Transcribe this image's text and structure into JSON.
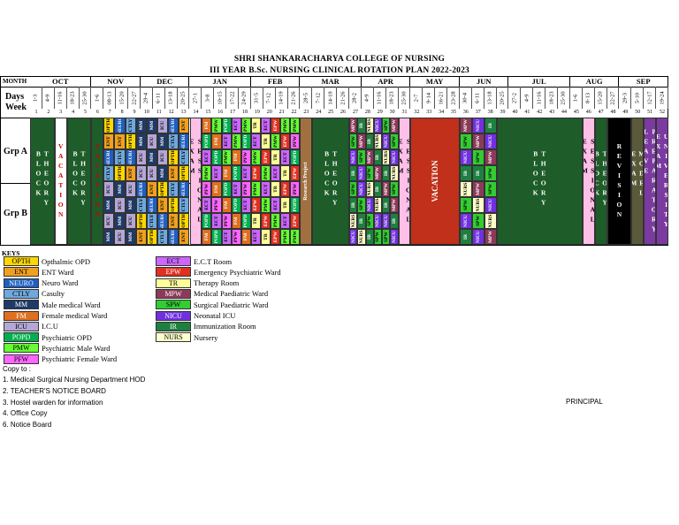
{
  "title1": "SHRI SHANKARACHARYA COLLEGE OF NURSING",
  "title2": "III YEAR B.Sc. NURSING CLINICAL ROTATION PLAN 2022-2023",
  "month_label": "MONTH",
  "days_label": "Days",
  "week_label": "Week",
  "grp_a": "Grp A",
  "grp_b": "Grp B",
  "months": [
    "OCT",
    "NOV",
    "DEC",
    "JAN",
    "FEB",
    "MAR",
    "APR",
    "MAY",
    "JUN",
    "JUL",
    "AUG",
    "SEP"
  ],
  "days": [
    "1-3",
    "4-9",
    "11-16",
    "18-23",
    "25-30",
    "1-6",
    "08-13",
    "15-20",
    "22-27",
    "29-4",
    "6-11",
    "13-18",
    "20-25",
    "27-1",
    "3-8",
    "10-15",
    "17-22",
    "24-29",
    "31-5",
    "7-12",
    "14-19",
    "21-26",
    "28-5",
    "7-12",
    "14-19",
    "21-26",
    "28-2",
    "4-9",
    "11-16",
    "18-23",
    "25-30",
    "2-7",
    "9-14",
    "16-21",
    "23-28",
    "30-4",
    "6-11",
    "13-18",
    "20-25",
    "27-2",
    "4-9",
    "11-16",
    "18-23",
    "25-30",
    "1-6",
    "8-13",
    "15-20",
    "22-27",
    "29-3",
    "5-10",
    "12-17",
    "19-24"
  ],
  "week_numbers": [
    "1",
    "2",
    "3",
    "4",
    "5",
    "6",
    "7",
    "8",
    "9",
    "10",
    "11",
    "12",
    "13",
    "14",
    "15",
    "16",
    "17",
    "18",
    "19",
    "20",
    "21",
    "22",
    "23",
    "24",
    "25",
    "26",
    "27",
    "28",
    "29",
    "30",
    "31",
    "32",
    "33",
    "34",
    "35",
    "36",
    "37",
    "38",
    "39",
    "40",
    "41",
    "42",
    "43",
    "44",
    "45",
    "46",
    "47",
    "48",
    "49",
    "50",
    "51",
    "52"
  ],
  "blocks": {
    "theory1": "THEORY BLOCK",
    "vacation1": "VACATION",
    "sessional1": "SESSIONAL EXAM",
    "research": "Research Project",
    "theory2": "THEORY BLOCK",
    "sessional2": "SESSIONAL EXAM",
    "vacation2": "VACATION",
    "theory3": "THEORY BLOCK",
    "sessional3": "SESSIONAL EXAM",
    "theory4": "THEORY BLOCK",
    "revision": "REVISION",
    "model": "MODEL EXAM",
    "prep": "PREPARATORY LEAVE",
    "univ": "UNIVERSITY EXAM"
  },
  "rot_a": [
    [
      "OPTH",
      "ENT",
      "NEURO",
      "CTLY"
    ],
    [
      "NEURO",
      "ENT",
      "CTLY",
      "OPTH"
    ],
    [
      "CTLY",
      "OPTH",
      "NEURO",
      "ENT"
    ],
    [
      "MM",
      "MM",
      "ICU",
      "ICU"
    ],
    [
      "MM",
      "ICU",
      "MM",
      "ICU"
    ],
    [
      "ICU",
      "MM",
      "ICU",
      "MM"
    ],
    [
      "NEURO",
      "CTLY",
      "OPTH",
      "ENT"
    ],
    [
      "ENT",
      "NEURO",
      "CTLY",
      "OPTH"
    ],
    [
      "FM",
      "POPD",
      "ECT",
      "PMW"
    ],
    [
      "PMW",
      "FM",
      "POPD",
      "ECT"
    ],
    [
      "POPD",
      "ECT",
      "PMW",
      "FM"
    ],
    [
      "ECT",
      "PMW",
      "FM",
      "POPD"
    ],
    [
      "PMW",
      "POPD",
      "PFW",
      "ECT"
    ],
    [
      "TR",
      "ECT",
      "PMW",
      "EPW"
    ],
    [
      "ECT",
      "TR",
      "EPW",
      "PMW"
    ],
    [
      "EPW",
      "PMW",
      "TR",
      "ECT"
    ],
    [
      "PMW",
      "EPW",
      "ECT",
      "TR"
    ],
    [
      "PMW",
      "PFW",
      "POPD",
      "EPW"
    ],
    [
      "MPW",
      "SPW",
      "NICU",
      "IR"
    ],
    [
      "IR",
      "MPW",
      "SPW",
      "NICU"
    ],
    [
      "NURS",
      "IR",
      "MPW",
      "SPW"
    ],
    [
      "NICU",
      "NURS",
      "IR",
      "MPW"
    ],
    [
      "SPW",
      "NICU",
      "NURS",
      "IR"
    ],
    [
      "MPW",
      "SPW",
      "NICU",
      "NURS"
    ],
    [
      "MPW",
      "SPW",
      "NICU",
      "IR"
    ],
    [
      "NICU",
      "MPW",
      "SPW",
      "IR"
    ],
    [
      "IR",
      "NICU",
      "MPW",
      "SPW"
    ]
  ],
  "rot_b": [
    [
      "ICU",
      "MM",
      "ICU",
      "MM"
    ],
    [
      "MM",
      "ICU",
      "MM",
      "ICU"
    ],
    [
      "ICU",
      "MM",
      "ICU",
      "MM"
    ],
    [
      "NEURO",
      "CTLY",
      "OPTH",
      "ENT"
    ],
    [
      "ENT",
      "NEURO",
      "CTLY",
      "OPTH"
    ],
    [
      "OPTH",
      "ENT",
      "NEURO",
      "CTLY"
    ],
    [
      "CTLY",
      "OPTH",
      "ENT",
      "NEURO"
    ],
    [
      "NEURO",
      "CTLY",
      "OPTH",
      "ENT"
    ],
    [
      "PFW",
      "ECT",
      "POPD",
      "FM"
    ],
    [
      "FM",
      "PFW",
      "ECT",
      "POPD"
    ],
    [
      "POPD",
      "FM",
      "PFW",
      "ECT"
    ],
    [
      "ECT",
      "POPD",
      "FM",
      "PFW"
    ],
    [
      "PFW",
      "ECT",
      "POPD",
      "FM"
    ],
    [
      "PMW",
      "EPW",
      "TR",
      "ECT"
    ],
    [
      "ECT",
      "PMW",
      "EPW",
      "TR"
    ],
    [
      "TR",
      "ECT",
      "PMW",
      "EPW"
    ],
    [
      "EPW",
      "TR",
      "ECT",
      "PMW"
    ],
    [
      "PFW",
      "POPD",
      "EPW",
      "PMW"
    ],
    [
      "SPW",
      "IR",
      "NURS",
      "NICU"
    ],
    [
      "NICU",
      "SPW",
      "IR",
      "NURS"
    ],
    [
      "NURS",
      "NICU",
      "SPW",
      "IR"
    ],
    [
      "IR",
      "NURS",
      "NICU",
      "SPW"
    ],
    [
      "MPW",
      "IR",
      "NICU",
      "SPW"
    ],
    [
      "SPW",
      "MPW",
      "IR",
      "NICU"
    ],
    [
      "NURS",
      "SPW",
      "NICU",
      "IR"
    ],
    [
      "MPW",
      "NURS",
      "SPW",
      "NICU"
    ],
    [
      "SPW",
      "NICU",
      "NURS",
      "MPW"
    ]
  ],
  "keys_title": "KEYS",
  "legend": [
    {
      "code": "OPTH",
      "label": "Opthalmic OPD",
      "color": "#ffd700"
    },
    {
      "code": "ENT",
      "label": "ENT Ward",
      "color": "#f0a020"
    },
    {
      "code": "NEURO",
      "label": "Neuro Ward",
      "color": "#1f5fbf"
    },
    {
      "code": "CTLY",
      "label": "Casulty",
      "color": "#6fa8dc"
    },
    {
      "code": "MM",
      "label": "Male medical Ward",
      "color": "#1f3a68"
    },
    {
      "code": "FM",
      "label": "Female medical Ward",
      "color": "#e07020"
    },
    {
      "code": "ICU",
      "label": "I.C.U",
      "color": "#b4a7d6"
    },
    {
      "code": "POPD",
      "label": "Psychiatric OPD",
      "color": "#00b050"
    },
    {
      "code": "PMW",
      "label": "Psychiatric Male Ward",
      "color": "#66ff33"
    },
    {
      "code": "PFW",
      "label": "Psychiatric Female Ward",
      "color": "#ff66ff"
    },
    {
      "code": "ECT",
      "label": "E.C.T Room",
      "color": "#cc66ff"
    },
    {
      "code": "EPW",
      "label": "Emergency Psychiatric Ward",
      "color": "#e03020"
    },
    {
      "code": "TR",
      "label": "Therapy Room",
      "color": "#ffff99"
    },
    {
      "code": "MPW",
      "label": "Medical Paediatric Ward",
      "color": "#8c3a5a"
    },
    {
      "code": "SPW",
      "label": "Surgical Paediatric Ward",
      "color": "#33cc33"
    },
    {
      "code": "NICU",
      "label": "Neonatal ICU",
      "color": "#7030e0"
    },
    {
      "code": "IR",
      "label": "Immunization Room",
      "color": "#1e8040"
    },
    {
      "code": "NURS",
      "label": "Nursery",
      "color": "#ffffcc"
    }
  ],
  "copy_to": "Copy to :",
  "copy_list": [
    "1.  Medical Surgical Nursing Department HOD",
    "2.  TEACHER'S NOTICE BOARD",
    "3.  Hostel warden for information",
    "4.  Office Copy",
    "6.  Notice Board"
  ],
  "principal": "PRINCIPAL"
}
